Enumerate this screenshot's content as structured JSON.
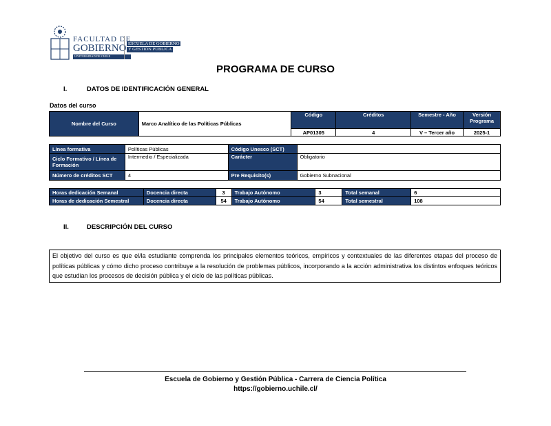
{
  "header": {
    "logo_text": [
      "FACULTAD DE",
      "GOBIERNO",
      "UNIVERSIDAD DE CHILE",
      "ESCUELA DE GOBIERNO",
      "Y GESTIÓN PÚBLICA"
    ],
    "title": "PROGRAMA DE CURSO"
  },
  "section1": {
    "number": "I.",
    "title": "DATOS DE IDENTIFICACIÓN GENERAL",
    "subtitle": "Datos del curso"
  },
  "course": {
    "name_label": "Nombre del Curso",
    "name": "Marco Analítico de las Políticas Públicas",
    "code_label": "Código",
    "code": "AP01305",
    "credits_label": "Créditos",
    "credits": "4",
    "semester_label": "Semestre - Año",
    "semester": "V – Tercer año",
    "version_label": "Versión Programa",
    "version": "2025-1"
  },
  "details": {
    "linea_label": "Línea formativa",
    "linea": "Políticas Públicas",
    "unesco_label": "Código Unesco (SCT)",
    "unesco": "",
    "ciclo_label": "Ciclo Formativo / Línea de Formación",
    "ciclo": "Intermedio / Especializada",
    "caracter_label": "Carácter",
    "caracter": "Obligatorio",
    "sct_label": "Número de créditos SCT",
    "sct": "4",
    "prereq_label": "Pre Requisito(s)",
    "prereq": "Gobierno Subnacional"
  },
  "hours": {
    "rows": [
      {
        "label": "Horas dedicación Semanal",
        "docencia_label": "Docencia directa",
        "docencia": "3",
        "autonomo_label": "Trabajo Autónomo",
        "autonomo": "3",
        "total_label": "Total semanal",
        "total": "6"
      },
      {
        "label": "Horas de dedicación Semestral",
        "docencia_label": "Docencia directa",
        "docencia": "54",
        "autonomo_label": "Trabajo Autónomo",
        "autonomo": "54",
        "total_label": "Total semestral",
        "total": "108"
      }
    ]
  },
  "section2": {
    "number": "II.",
    "title": "DESCRIPCIÓN DEL CURSO",
    "text": "El objetivo del curso es que el/la estudiante comprenda los principales elementos teóricos, empíricos y contextuales de las diferentes etapas del proceso de políticas públicas y cómo dicho proceso contribuye a la resolución de problemas públicos, incorporando a la acción administrativa los distintos enfoques teóricos que estudian los procesos de decisión pública y el ciclo de las políticas públicas."
  },
  "footer": {
    "line1": "Escuela de Gobierno y Gestión Pública - Carrera de Ciencia Política",
    "line2": "https://gobierno.uchile.cl/"
  }
}
